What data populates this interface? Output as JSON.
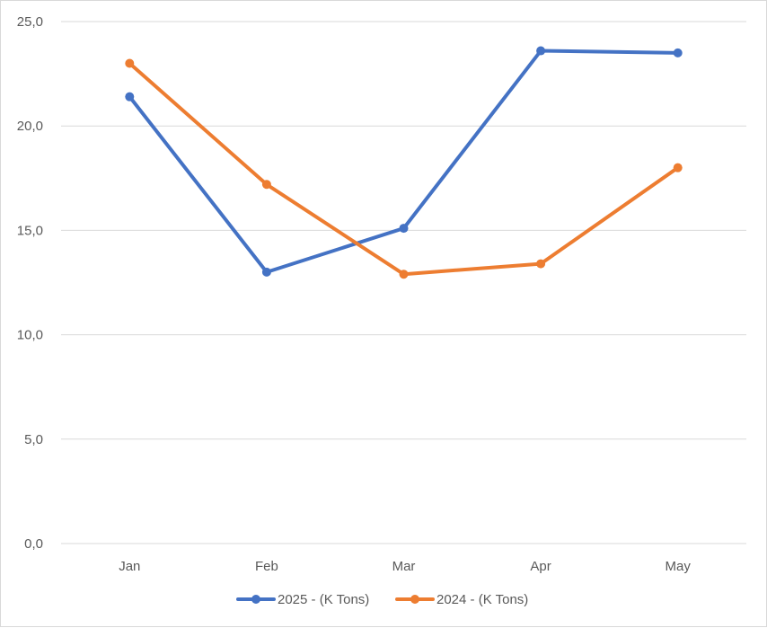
{
  "chart_data": {
    "type": "line",
    "categories": [
      "Jan",
      "Feb",
      "Mar",
      "Apr",
      "May"
    ],
    "series": [
      {
        "name": "2025 - (K Tons)",
        "color": "#4472C4",
        "values": [
          21.4,
          13.0,
          15.1,
          23.6,
          23.5
        ]
      },
      {
        "name": "2024 - (K Tons)",
        "color": "#ED7D31",
        "values": [
          23.0,
          17.2,
          12.9,
          13.4,
          18.0
        ]
      }
    ],
    "y_ticks": [
      "0,0",
      "5,0",
      "10,0",
      "15,0",
      "20,0",
      "25,0"
    ],
    "ylim": [
      0,
      25
    ],
    "grid": true,
    "legend_position": "bottom",
    "title": "",
    "xlabel": "",
    "ylabel": ""
  }
}
